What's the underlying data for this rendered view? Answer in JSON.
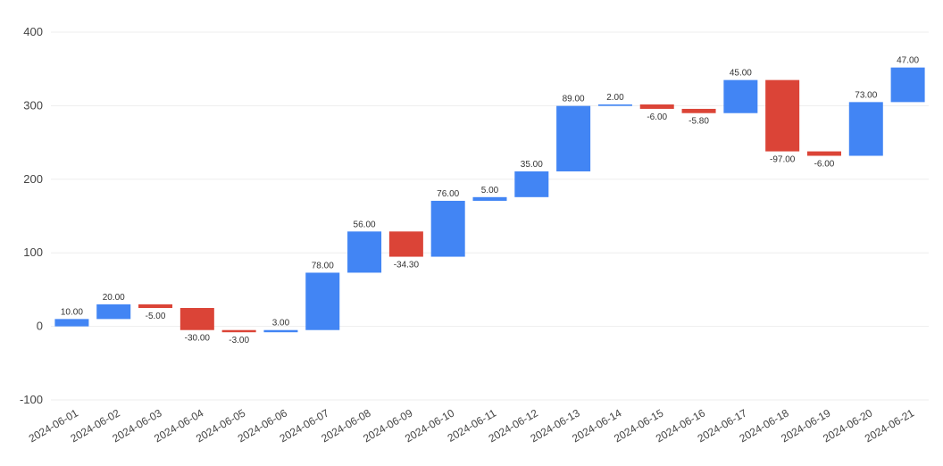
{
  "chart_data": {
    "type": "bar",
    "subtype": "waterfall",
    "categories": [
      "2024-06-01",
      "2024-06-02",
      "2024-06-03",
      "2024-06-04",
      "2024-06-05",
      "2024-06-06",
      "2024-06-07",
      "2024-06-08",
      "2024-06-09",
      "2024-06-10",
      "2024-06-11",
      "2024-06-12",
      "2024-06-13",
      "2024-06-14",
      "2024-06-15",
      "2024-06-16",
      "2024-06-17",
      "2024-06-18",
      "2024-06-19",
      "2024-06-20",
      "2024-06-21"
    ],
    "values": [
      10,
      20,
      -5,
      -30,
      -3,
      3,
      78,
      56,
      -34.3,
      76,
      5,
      35,
      89,
      2,
      -6,
      -5.8,
      45,
      -97,
      -6,
      73,
      47
    ],
    "data_labels": [
      "10.00",
      "20.00",
      "-5.00",
      "-30.00",
      "-3.00",
      "3.00",
      "78.00",
      "56.00",
      "-34.30",
      "76.00",
      "5.00",
      "35.00",
      "89.00",
      "2.00",
      "-6.00",
      "-5.80",
      "45.00",
      "-97.00",
      "-6.00",
      "73.00",
      "47.00"
    ],
    "yticks": [
      "400",
      "300",
      "200",
      "100",
      "0",
      "-100"
    ],
    "ylim": [
      -100,
      400
    ],
    "grid": true,
    "colors": {
      "increase": "#4285f4",
      "decrease": "#db4437"
    },
    "title": "",
    "xlabel": "",
    "ylabel": ""
  }
}
